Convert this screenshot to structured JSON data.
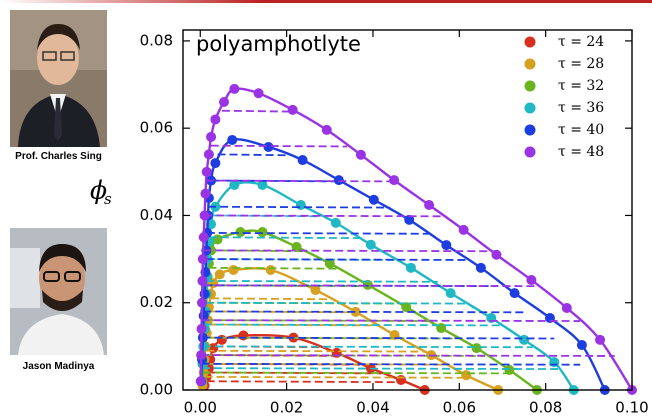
{
  "people": [
    {
      "name": "Prof. Charles Sing"
    },
    {
      "name": "Jason Madinya"
    }
  ],
  "chart_data": {
    "type": "scatter-line",
    "annotation": "polyamphotlyte",
    "y_label": "ϕ",
    "y_label_subscript": "s",
    "xlim": [
      -0.004,
      0.1
    ],
    "ylim": [
      0,
      0.0825
    ],
    "xticks": [
      {
        "value": 0,
        "label": "0.00"
      },
      {
        "value": 0.02,
        "label": "0.02"
      },
      {
        "value": 0.04,
        "label": "0.04"
      },
      {
        "value": 0.06,
        "label": "0.06"
      },
      {
        "value": 0.08,
        "label": "0.08"
      },
      {
        "value": 0.1,
        "label": "0.10"
      }
    ],
    "yticks": [
      {
        "value": 0,
        "label": "0.00"
      },
      {
        "value": 0.02,
        "label": "0.02"
      },
      {
        "value": 0.04,
        "label": "0.04"
      },
      {
        "value": 0.06,
        "label": "0.06"
      },
      {
        "value": 0.08,
        "label": "0.08"
      }
    ],
    "legend_loc": "upper right",
    "series": [
      {
        "name": "τ = 24",
        "color": "#d8301e",
        "x": [
          0.001,
          0.0015,
          0.002,
          0.0023,
          0.003,
          0.005,
          0.01,
          0.0216,
          0.0316,
          0.0395,
          0.0465,
          0.052
        ],
        "y": [
          0.001,
          0.003,
          0.005,
          0.007,
          0.0096,
          0.0115,
          0.0125,
          0.012,
          0.0085,
          0.005,
          0.0023,
          0
        ],
        "ties": [
          [
            0.0015,
            0.002,
            0.046,
            0.0018
          ],
          [
            0.002,
            0.004,
            0.042,
            0.0038
          ],
          [
            0.0022,
            0.006,
            0.037,
            0.0058
          ],
          [
            0.0025,
            0.008,
            0.033,
            0.0078
          ],
          [
            0.0035,
            0.01,
            0.028,
            0.0098
          ]
        ]
      },
      {
        "name": "τ = 28",
        "color": "#d6a021",
        "x": [
          0.0005,
          0.0008,
          0.001,
          0.0012,
          0.0015,
          0.0018,
          0.002,
          0.0025,
          0.003,
          0.0045,
          0.0077,
          0.0163,
          0.0267,
          0.036,
          0.045,
          0.0535,
          0.0616,
          0.069
        ],
        "y": [
          0.001,
          0.004,
          0.007,
          0.01,
          0.013,
          0.016,
          0.019,
          0.022,
          0.0245,
          0.0265,
          0.0275,
          0.0275,
          0.0229,
          0.0179,
          0.0126,
          0.008,
          0.0034,
          0
        ],
        "ties": [
          [
            0.001,
            0.003,
            0.062,
            0.0028
          ],
          [
            0.0012,
            0.006,
            0.057,
            0.0058
          ],
          [
            0.0014,
            0.009,
            0.052,
            0.0088
          ],
          [
            0.0016,
            0.012,
            0.046,
            0.0118
          ],
          [
            0.0018,
            0.015,
            0.041,
            0.0148
          ],
          [
            0.002,
            0.018,
            0.036,
            0.0178
          ],
          [
            0.0025,
            0.021,
            0.03,
            0.0208
          ],
          [
            0.003,
            0.024,
            0.025,
            0.0238
          ]
        ]
      },
      {
        "name": "τ = 32",
        "color": "#6ab41f",
        "x": [
          0.0005,
          0.0007,
          0.0009,
          0.0011,
          0.0013,
          0.0015,
          0.0017,
          0.002,
          0.0025,
          0.004,
          0.0093,
          0.0144,
          0.0223,
          0.03,
          0.0388,
          0.0477,
          0.0558,
          0.064,
          0.0716,
          0.078
        ],
        "y": [
          0.002,
          0.006,
          0.01,
          0.014,
          0.018,
          0.022,
          0.026,
          0.029,
          0.032,
          0.0345,
          0.0362,
          0.0362,
          0.0328,
          0.029,
          0.0241,
          0.019,
          0.0142,
          0.0096,
          0.0046,
          0
        ],
        "ties": [
          [
            0.0006,
            0.004,
            0.072,
            0.0038
          ],
          [
            0.0008,
            0.008,
            0.066,
            0.0078
          ],
          [
            0.001,
            0.012,
            0.06,
            0.0118
          ],
          [
            0.0012,
            0.016,
            0.054,
            0.0158
          ],
          [
            0.0014,
            0.02,
            0.046,
            0.0198
          ],
          [
            0.0016,
            0.024,
            0.039,
            0.0238
          ],
          [
            0.0019,
            0.028,
            0.032,
            0.0278
          ],
          [
            0.0025,
            0.032,
            0.024,
            0.0318
          ]
        ]
      },
      {
        "name": "τ = 36",
        "color": "#1fb8c4",
        "x": [
          0.0003,
          0.0005,
          0.0007,
          0.0009,
          0.0011,
          0.0013,
          0.0015,
          0.0017,
          0.002,
          0.0025,
          0.0035,
          0.0079,
          0.0144,
          0.0233,
          0.0314,
          0.0395,
          0.0488,
          0.058,
          0.0674,
          0.075,
          0.082,
          0.0865
        ],
        "y": [
          0.002,
          0.006,
          0.01,
          0.014,
          0.018,
          0.022,
          0.026,
          0.03,
          0.034,
          0.038,
          0.042,
          0.047,
          0.047,
          0.0424,
          0.0383,
          0.0333,
          0.028,
          0.0222,
          0.0165,
          0.0115,
          0.0064,
          0
        ],
        "ties": [
          [
            0.0004,
            0.005,
            0.083,
            0.0048
          ],
          [
            0.0006,
            0.01,
            0.077,
            0.0098
          ],
          [
            0.0008,
            0.015,
            0.07,
            0.0148
          ],
          [
            0.0011,
            0.02,
            0.062,
            0.0198
          ],
          [
            0.0013,
            0.025,
            0.055,
            0.0248
          ],
          [
            0.0016,
            0.03,
            0.045,
            0.0298
          ],
          [
            0.002,
            0.035,
            0.037,
            0.0348
          ],
          [
            0.003,
            0.04,
            0.028,
            0.0398
          ]
        ]
      },
      {
        "name": "τ = 40",
        "color": "#1e3de0",
        "x": [
          0.0002,
          0.0004,
          0.0006,
          0.0008,
          0.001,
          0.0012,
          0.0014,
          0.0016,
          0.0018,
          0.002,
          0.0025,
          0.0035,
          0.0074,
          0.0158,
          0.0237,
          0.0321,
          0.0402,
          0.0484,
          0.057,
          0.065,
          0.0728,
          0.081,
          0.0884,
          0.0937
        ],
        "y": [
          0.002,
          0.007,
          0.012,
          0.017,
          0.022,
          0.027,
          0.032,
          0.036,
          0.04,
          0.044,
          0.048,
          0.052,
          0.0573,
          0.0557,
          0.0527,
          0.0481,
          0.0436,
          0.039,
          0.0332,
          0.028,
          0.0222,
          0.0165,
          0.0103,
          0
        ],
        "ties": [
          [
            0.0003,
            0.006,
            0.088,
            0.0058
          ],
          [
            0.0005,
            0.012,
            0.082,
            0.0118
          ],
          [
            0.0007,
            0.018,
            0.075,
            0.0178
          ],
          [
            0.001,
            0.024,
            0.069,
            0.0238
          ],
          [
            0.0012,
            0.03,
            0.062,
            0.0298
          ],
          [
            0.0015,
            0.036,
            0.053,
            0.0358
          ],
          [
            0.0018,
            0.042,
            0.044,
            0.0418
          ],
          [
            0.0024,
            0.048,
            0.033,
            0.0478
          ],
          [
            0.004,
            0.054,
            0.02,
            0.0538
          ]
        ]
      },
      {
        "name": "τ = 48",
        "color": "#9a33e4",
        "x": [
          0.0001,
          0.0002,
          0.0003,
          0.0004,
          0.0005,
          0.0006,
          0.0008,
          0.001,
          0.0012,
          0.0015,
          0.002,
          0.0025,
          0.0035,
          0.0055,
          0.0079,
          0.0135,
          0.0214,
          0.0293,
          0.0372,
          0.0449,
          0.053,
          0.061,
          0.0686,
          0.0767,
          0.0849,
          0.0926,
          0.1
        ],
        "y": [
          0.002,
          0.008,
          0.014,
          0.02,
          0.025,
          0.03,
          0.035,
          0.04,
          0.045,
          0.05,
          0.054,
          0.058,
          0.062,
          0.066,
          0.069,
          0.068,
          0.0642,
          0.0596,
          0.0539,
          0.0481,
          0.0424,
          0.0367,
          0.031,
          0.0252,
          0.0188,
          0.0115,
          0
        ],
        "ties": [
          [
            0.0002,
            0.008,
            0.096,
            0.0078
          ],
          [
            0.0003,
            0.016,
            0.088,
            0.0158
          ],
          [
            0.0005,
            0.024,
            0.078,
            0.0238
          ],
          [
            0.0007,
            0.032,
            0.068,
            0.0318
          ],
          [
            0.001,
            0.04,
            0.057,
            0.0398
          ],
          [
            0.0014,
            0.048,
            0.045,
            0.0478
          ],
          [
            0.0024,
            0.056,
            0.034,
            0.0558
          ],
          [
            0.005,
            0.064,
            0.021,
            0.0638
          ]
        ]
      }
    ]
  }
}
